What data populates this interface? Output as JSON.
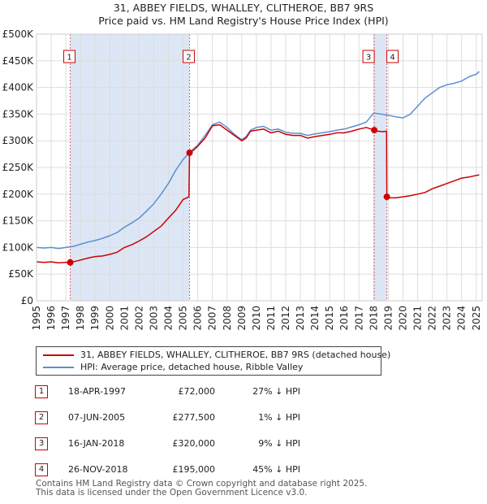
{
  "chart_data": {
    "type": "line",
    "title": "31, ABBEY FIELDS, WHALLEY, CLITHEROE, BB7 9RS",
    "subtitle": "Price paid vs. HM Land Registry's House Price Index (HPI)",
    "xlim": [
      1995,
      2025.4
    ],
    "ylim": [
      0,
      500000
    ],
    "x_ticks": [
      "1995",
      "1996",
      "1997",
      "1998",
      "1999",
      "2000",
      "2001",
      "2002",
      "2003",
      "2004",
      "2005",
      "2006",
      "2007",
      "2008",
      "2009",
      "2010",
      "2011",
      "2012",
      "2013",
      "2014",
      "2015",
      "2016",
      "2017",
      "2018",
      "2019",
      "2020",
      "2021",
      "2022",
      "2023",
      "2024",
      "2025"
    ],
    "y_ticks": [
      {
        "value": 0,
        "label": "£0"
      },
      {
        "value": 50000,
        "label": "£50K"
      },
      {
        "value": 100000,
        "label": "£100K"
      },
      {
        "value": 150000,
        "label": "£150K"
      },
      {
        "value": 200000,
        "label": "£200K"
      },
      {
        "value": 250000,
        "label": "£250K"
      },
      {
        "value": 300000,
        "label": "£300K"
      },
      {
        "value": 350000,
        "label": "£350K"
      },
      {
        "value": 400000,
        "label": "£400K"
      },
      {
        "value": 450000,
        "label": "£450K"
      },
      {
        "value": 500000,
        "label": "£500K"
      }
    ],
    "shaded_spans": [
      [
        1997.3,
        2005.43
      ],
      [
        2018.04,
        2018.9
      ]
    ],
    "series": [
      {
        "name": "31, ABBEY FIELDS, WHALLEY, CLITHEROE, BB7 9RS (detached house)",
        "color": "#cc0000",
        "x": [
          1995.0,
          1995.5,
          1996.0,
          1996.5,
          1997.0,
          1997.3,
          1997.8,
          1998.5,
          1999.0,
          1999.5,
          2000.0,
          2000.5,
          2001.0,
          2001.5,
          2002.0,
          2002.5,
          2003.0,
          2003.5,
          2004.0,
          2004.5,
          2005.0,
          2005.4,
          2005.44,
          2005.7,
          2006.0,
          2006.5,
          2007.0,
          2007.5,
          2008.0,
          2008.5,
          2009.0,
          2009.3,
          2009.6,
          2010.0,
          2010.5,
          2011.0,
          2011.5,
          2012.0,
          2012.5,
          2013.0,
          2013.5,
          2014.0,
          2014.5,
          2015.0,
          2015.5,
          2016.0,
          2016.5,
          2017.0,
          2017.5,
          2018.04,
          2018.3,
          2018.6,
          2018.88,
          2018.9,
          2019.0,
          2019.5,
          2020.0,
          2020.5,
          2021.0,
          2021.5,
          2022.0,
          2022.5,
          2023.0,
          2023.5,
          2024.0,
          2024.5,
          2025.0,
          2025.2
        ],
        "y": [
          73000,
          72000,
          73000,
          71000,
          72000,
          72000,
          75000,
          80000,
          83000,
          84000,
          87000,
          91000,
          100000,
          105000,
          112000,
          120000,
          130000,
          140000,
          155000,
          170000,
          190000,
          195000,
          277500,
          282000,
          290000,
          305000,
          328000,
          330000,
          320000,
          310000,
          300000,
          305000,
          318000,
          320000,
          322000,
          315000,
          318000,
          312000,
          310000,
          310000,
          305000,
          308000,
          310000,
          312000,
          315000,
          315000,
          318000,
          322000,
          325000,
          320000,
          318000,
          317000,
          318000,
          195000,
          193000,
          193000,
          195000,
          197000,
          200000,
          203000,
          210000,
          215000,
          220000,
          225000,
          230000,
          232000,
          235000,
          236000
        ]
      },
      {
        "name": "HPI: Average price, detached house, Ribble Valley",
        "color": "#5b8fd0",
        "x": [
          1995.0,
          1995.5,
          1996.0,
          1996.5,
          1997.0,
          1997.5,
          1998.0,
          1998.5,
          1999.0,
          1999.5,
          2000.0,
          2000.5,
          2001.0,
          2001.5,
          2002.0,
          2002.5,
          2003.0,
          2003.5,
          2004.0,
          2004.5,
          2005.0,
          2005.5,
          2006.0,
          2006.5,
          2007.0,
          2007.5,
          2008.0,
          2008.5,
          2009.0,
          2009.3,
          2009.6,
          2010.0,
          2010.5,
          2011.0,
          2011.5,
          2012.0,
          2012.5,
          2013.0,
          2013.5,
          2014.0,
          2014.5,
          2015.0,
          2015.5,
          2016.0,
          2016.5,
          2017.0,
          2017.5,
          2018.0,
          2018.5,
          2019.0,
          2019.5,
          2020.0,
          2020.5,
          2021.0,
          2021.5,
          2022.0,
          2022.5,
          2023.0,
          2023.5,
          2024.0,
          2024.5,
          2025.0,
          2025.2
        ],
        "y": [
          100000,
          99000,
          100000,
          98000,
          100000,
          102000,
          106000,
          110000,
          113000,
          117000,
          122000,
          128000,
          138000,
          146000,
          155000,
          168000,
          182000,
          200000,
          220000,
          245000,
          265000,
          280000,
          292000,
          310000,
          330000,
          335000,
          325000,
          312000,
          302000,
          308000,
          320000,
          325000,
          327000,
          320000,
          322000,
          316000,
          314000,
          314000,
          310000,
          313000,
          315000,
          317000,
          320000,
          322000,
          326000,
          330000,
          335000,
          352000,
          350000,
          348000,
          345000,
          343000,
          350000,
          365000,
          380000,
          390000,
          400000,
          405000,
          408000,
          412000,
          420000,
          425000,
          430000
        ]
      }
    ],
    "sales": [
      {
        "id": "1",
        "x": 1997.3,
        "price": 72000
      },
      {
        "id": "2",
        "x": 2005.44,
        "price": 277500
      },
      {
        "id": "3",
        "x": 2018.04,
        "price": 320000
      },
      {
        "id": "4",
        "x": 2018.9,
        "price": 195000
      }
    ]
  },
  "legend": {
    "property_label": "31, ABBEY FIELDS, WHALLEY, CLITHEROE, BB7 9RS (detached house)",
    "hpi_label": "HPI: Average price, detached house, Ribble Valley"
  },
  "sales_table": [
    {
      "id": "1",
      "date": "18-APR-1997",
      "price": "£72,000",
      "hpi": "27% ↓ HPI"
    },
    {
      "id": "2",
      "date": "07-JUN-2005",
      "price": "£277,500",
      "hpi": "1% ↓ HPI"
    },
    {
      "id": "3",
      "date": "16-JAN-2018",
      "price": "£320,000",
      "hpi": "9% ↓ HPI"
    },
    {
      "id": "4",
      "date": "26-NOV-2018",
      "price": "£195,000",
      "hpi": "45% ↓ HPI"
    }
  ],
  "footer": {
    "line1": "Contains HM Land Registry data © Crown copyright and database right 2025.",
    "line2": "This data is licensed under the Open Government Licence v3.0."
  },
  "colors": {
    "property": "#cc0000",
    "hpi": "#5b8fd0",
    "shade": "#dce6f5"
  }
}
